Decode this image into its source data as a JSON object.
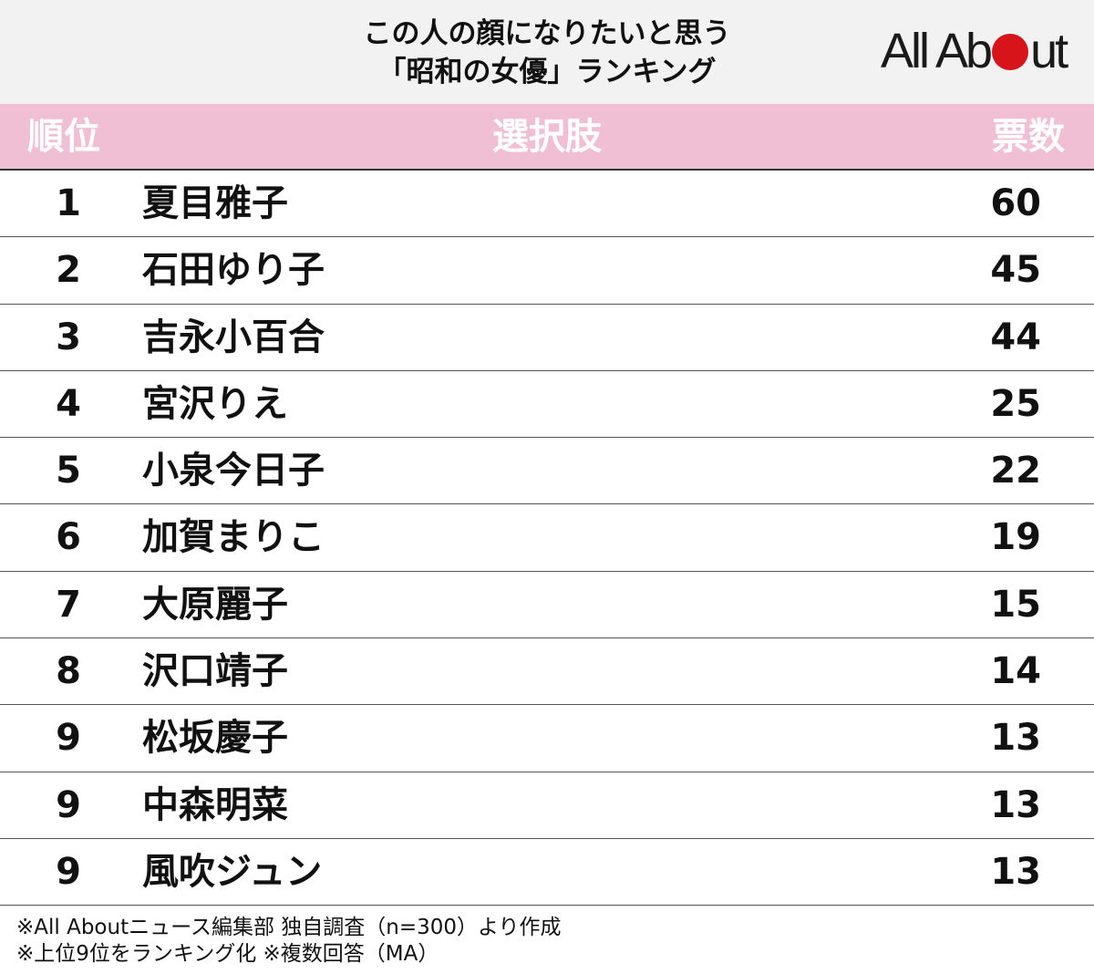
{
  "header": {
    "title_line1": "この人の顔になりたいと思う",
    "title_line2": "「昭和の女優」ランキング",
    "logo_left": "All Ab",
    "logo_right": "ut"
  },
  "columns": {
    "rank": "順位",
    "name": "選択肢",
    "votes": "票数"
  },
  "chart_data": {
    "type": "table",
    "title": "この人の顔になりたいと思う「昭和の女優」ランキング",
    "columns": [
      "順位",
      "選択肢",
      "票数"
    ],
    "rows": [
      {
        "rank": "1",
        "name": "夏目雅子",
        "votes": "60"
      },
      {
        "rank": "2",
        "name": "石田ゆり子",
        "votes": "45"
      },
      {
        "rank": "3",
        "name": "吉永小百合",
        "votes": "44"
      },
      {
        "rank": "4",
        "name": "宮沢りえ",
        "votes": "25"
      },
      {
        "rank": "5",
        "name": "小泉今日子",
        "votes": "22"
      },
      {
        "rank": "6",
        "name": "加賀まりこ",
        "votes": "19"
      },
      {
        "rank": "7",
        "name": "大原麗子",
        "votes": "15"
      },
      {
        "rank": "8",
        "name": "沢口靖子",
        "votes": "14"
      },
      {
        "rank": "9",
        "name": "松坂慶子",
        "votes": "13"
      },
      {
        "rank": "9",
        "name": "中森明菜",
        "votes": "13"
      },
      {
        "rank": "9",
        "name": "風吹ジュン",
        "votes": "13"
      }
    ]
  },
  "notes": {
    "line1": "※All Aboutニュース編集部 独自調査（n=300）より作成",
    "line2": "※上位9位をランキング化 ※複数回答（MA）"
  },
  "colors": {
    "header_bg": "#f2f2f2",
    "column_header_bg": "#f0bfd4",
    "logo_accent": "#d7141a"
  }
}
